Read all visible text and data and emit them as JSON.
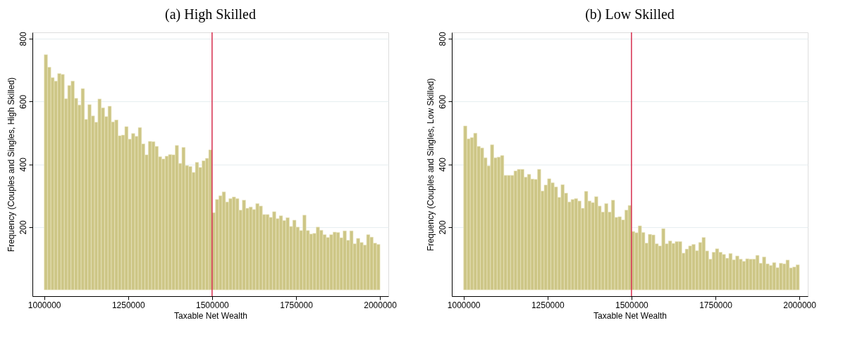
{
  "chart_data": [
    {
      "type": "histogram",
      "title": "(a) High Skilled",
      "xlabel": "Taxable Net Wealth",
      "ylabel": "Frequency (Couples and Singles, High Skilled)",
      "color": "#cdc686",
      "bins": [
        1000000,
        1010000,
        1020000,
        1030000,
        1040000,
        1050000,
        1060000,
        1070000,
        1080000,
        1090000,
        1100000,
        1110000,
        1120000,
        1130000,
        1140000,
        1150000,
        1160000,
        1170000,
        1180000,
        1190000,
        1200000,
        1210000,
        1220000,
        1230000,
        1240000,
        1250000,
        1260000,
        1270000,
        1280000,
        1290000,
        1300000,
        1310000,
        1320000,
        1330000,
        1340000,
        1350000,
        1360000,
        1370000,
        1380000,
        1390000,
        1400000,
        1410000,
        1420000,
        1430000,
        1440000,
        1450000,
        1460000,
        1470000,
        1480000,
        1490000,
        1500000,
        1510000,
        1520000,
        1530000,
        1540000,
        1550000,
        1560000,
        1570000,
        1580000,
        1590000,
        1600000,
        1610000,
        1620000,
        1630000,
        1640000,
        1650000,
        1660000,
        1670000,
        1680000,
        1690000,
        1700000,
        1710000,
        1720000,
        1730000,
        1740000,
        1750000,
        1760000,
        1770000,
        1780000,
        1790000,
        1800000,
        1810000,
        1820000,
        1830000,
        1840000,
        1850000,
        1860000,
        1870000,
        1880000,
        1890000,
        1900000,
        1910000,
        1920000,
        1930000,
        1940000,
        1950000,
        1960000,
        1970000,
        1980000,
        1990000,
        2000000
      ],
      "values": [
        749,
        709,
        676,
        665,
        689,
        686,
        609,
        651,
        665,
        610,
        589,
        641,
        543,
        590,
        554,
        534,
        608,
        580,
        552,
        585,
        535,
        541,
        491,
        493,
        520,
        480,
        498,
        489,
        517,
        465,
        430,
        473,
        472,
        457,
        424,
        417,
        426,
        431,
        430,
        460,
        403,
        454,
        396,
        393,
        374,
        406,
        390,
        411,
        419,
        446,
        246,
        288,
        300,
        312,
        280,
        291,
        296,
        291,
        254,
        286,
        260,
        264,
        256,
        275,
        267,
        240,
        240,
        231,
        249,
        227,
        236,
        221,
        230,
        202,
        222,
        200,
        189,
        238,
        189,
        178,
        180,
        200,
        190,
        176,
        167,
        176,
        184,
        183,
        166,
        188,
        158,
        188,
        147,
        164,
        151,
        143,
        176,
        168,
        149,
        145
      ],
      "xlim": [
        965000,
        2025000
      ],
      "xticks": [
        1000000,
        1250000,
        1500000,
        1750000,
        2000000
      ],
      "ylim": [
        -20,
        820
      ],
      "yticks": [
        200,
        400,
        600,
        800
      ],
      "grid": "y",
      "ref_lines": [
        {
          "axis": "x",
          "value": 1500000,
          "color": "#d62d4d"
        }
      ]
    },
    {
      "type": "histogram",
      "title": "(b) Low Skilled",
      "xlabel": "Taxable Net Wealth",
      "ylabel": "Frequency (Couples and Singles, Low Skilled)",
      "color": "#cdc686",
      "bins": [
        1000000,
        1010000,
        1020000,
        1030000,
        1040000,
        1050000,
        1060000,
        1070000,
        1080000,
        1090000,
        1100000,
        1110000,
        1120000,
        1130000,
        1140000,
        1150000,
        1160000,
        1170000,
        1180000,
        1190000,
        1200000,
        1210000,
        1220000,
        1230000,
        1240000,
        1250000,
        1260000,
        1270000,
        1280000,
        1290000,
        1300000,
        1310000,
        1320000,
        1330000,
        1340000,
        1350000,
        1360000,
        1370000,
        1380000,
        1390000,
        1400000,
        1410000,
        1420000,
        1430000,
        1440000,
        1450000,
        1460000,
        1470000,
        1480000,
        1490000,
        1500000,
        1510000,
        1520000,
        1530000,
        1540000,
        1550000,
        1560000,
        1570000,
        1580000,
        1590000,
        1600000,
        1610000,
        1620000,
        1630000,
        1640000,
        1650000,
        1660000,
        1670000,
        1680000,
        1690000,
        1700000,
        1710000,
        1720000,
        1730000,
        1740000,
        1750000,
        1760000,
        1770000,
        1780000,
        1790000,
        1800000,
        1810000,
        1820000,
        1830000,
        1840000,
        1850000,
        1860000,
        1870000,
        1880000,
        1890000,
        1900000,
        1910000,
        1920000,
        1930000,
        1940000,
        1950000,
        1960000,
        1970000,
        1980000,
        1990000,
        2000000
      ],
      "values": [
        522,
        481,
        485,
        499,
        457,
        452,
        421,
        395,
        462,
        421,
        423,
        428,
        365,
        365,
        365,
        379,
        384,
        384,
        359,
        368,
        353,
        352,
        384,
        315,
        334,
        354,
        341,
        328,
        295,
        335,
        308,
        280,
        288,
        291,
        283,
        260,
        314,
        283,
        278,
        297,
        267,
        248,
        275,
        248,
        286,
        231,
        233,
        223,
        254,
        269,
        186,
        182,
        204,
        183,
        149,
        177,
        175,
        147,
        140,
        195,
        147,
        156,
        148,
        154,
        154,
        117,
        130,
        140,
        145,
        125,
        151,
        167,
        124,
        98,
        120,
        131,
        120,
        113,
        101,
        116,
        96,
        108,
        98,
        91,
        99,
        98,
        98,
        110,
        85,
        105,
        83,
        78,
        87,
        71,
        85,
        83,
        95,
        70,
        73,
        80
      ],
      "xlim": [
        965000,
        2025000
      ],
      "xticks": [
        1000000,
        1250000,
        1500000,
        1750000,
        2000000
      ],
      "ylim": [
        -20,
        820
      ],
      "yticks": [
        200,
        400,
        600,
        800
      ],
      "grid": "y",
      "ref_lines": [
        {
          "axis": "x",
          "value": 1500000,
          "color": "#d62d4d"
        }
      ]
    }
  ]
}
